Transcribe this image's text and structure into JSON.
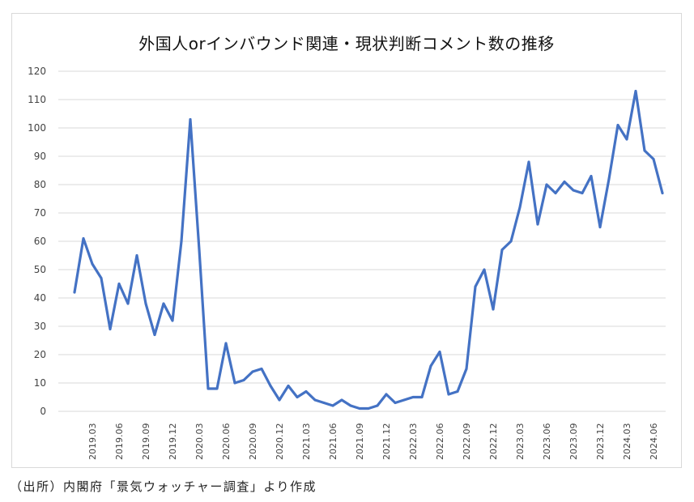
{
  "chart_data": {
    "type": "line",
    "title": "外国人orインバウンド関連・現状判断コメント数の推移",
    "xlabel": "",
    "ylabel": "",
    "ylim": [
      0,
      120
    ],
    "yticks": [
      0,
      10,
      20,
      30,
      40,
      50,
      60,
      70,
      80,
      90,
      100,
      110,
      120
    ],
    "grid": true,
    "legend": "none",
    "color": "#4472C4",
    "x": [
      "2019.01",
      "2019.02",
      "2019.03",
      "2019.04",
      "2019.05",
      "2019.06",
      "2019.07",
      "2019.08",
      "2019.09",
      "2019.10",
      "2019.11",
      "2019.12",
      "2020.01",
      "2020.02",
      "2020.03",
      "2020.04",
      "2020.05",
      "2020.06",
      "2020.07",
      "2020.08",
      "2020.09",
      "2020.10",
      "2020.11",
      "2020.12",
      "2021.01",
      "2021.02",
      "2021.03",
      "2021.04",
      "2021.05",
      "2021.06",
      "2021.07",
      "2021.08",
      "2021.09",
      "2021.10",
      "2021.11",
      "2021.12",
      "2022.01",
      "2022.02",
      "2022.03",
      "2022.04",
      "2022.05",
      "2022.06",
      "2022.07",
      "2022.08",
      "2022.09",
      "2022.10",
      "2022.11",
      "2022.12",
      "2023.01",
      "2023.02",
      "2023.03",
      "2023.04",
      "2023.05",
      "2023.06",
      "2023.07",
      "2023.08",
      "2023.09",
      "2023.10",
      "2023.11",
      "2023.12",
      "2024.01",
      "2024.02",
      "2024.03",
      "2024.04",
      "2024.05",
      "2024.06",
      "2024.07"
    ],
    "x_tick_labels": [
      "2019.03",
      "2019.06",
      "2019.09",
      "2019.12",
      "2020.03",
      "2020.06",
      "2020.09",
      "2020.12",
      "2021.03",
      "2021.06",
      "2021.09",
      "2021.12",
      "2022.03",
      "2022.06",
      "2022.09",
      "2022.12",
      "2023.03",
      "2023.06",
      "2023.09",
      "2023.12",
      "2024.03",
      "2024.06"
    ],
    "series": [
      {
        "name": "コメント数",
        "values": [
          42,
          61,
          52,
          47,
          29,
          45,
          38,
          55,
          38,
          27,
          38,
          32,
          60,
          103,
          57,
          8,
          8,
          24,
          10,
          11,
          14,
          15,
          9,
          4,
          9,
          5,
          7,
          4,
          3,
          2,
          4,
          2,
          1,
          1,
          2,
          6,
          3,
          4,
          5,
          5,
          16,
          21,
          6,
          7,
          15,
          44,
          50,
          36,
          57,
          60,
          72,
          88,
          66,
          80,
          77,
          81,
          78,
          77,
          83,
          65,
          82,
          101,
          96,
          113,
          92,
          89,
          77
        ]
      }
    ]
  },
  "source_note": "（出所）内閣府「景気ウォッチャー調査」より作成"
}
